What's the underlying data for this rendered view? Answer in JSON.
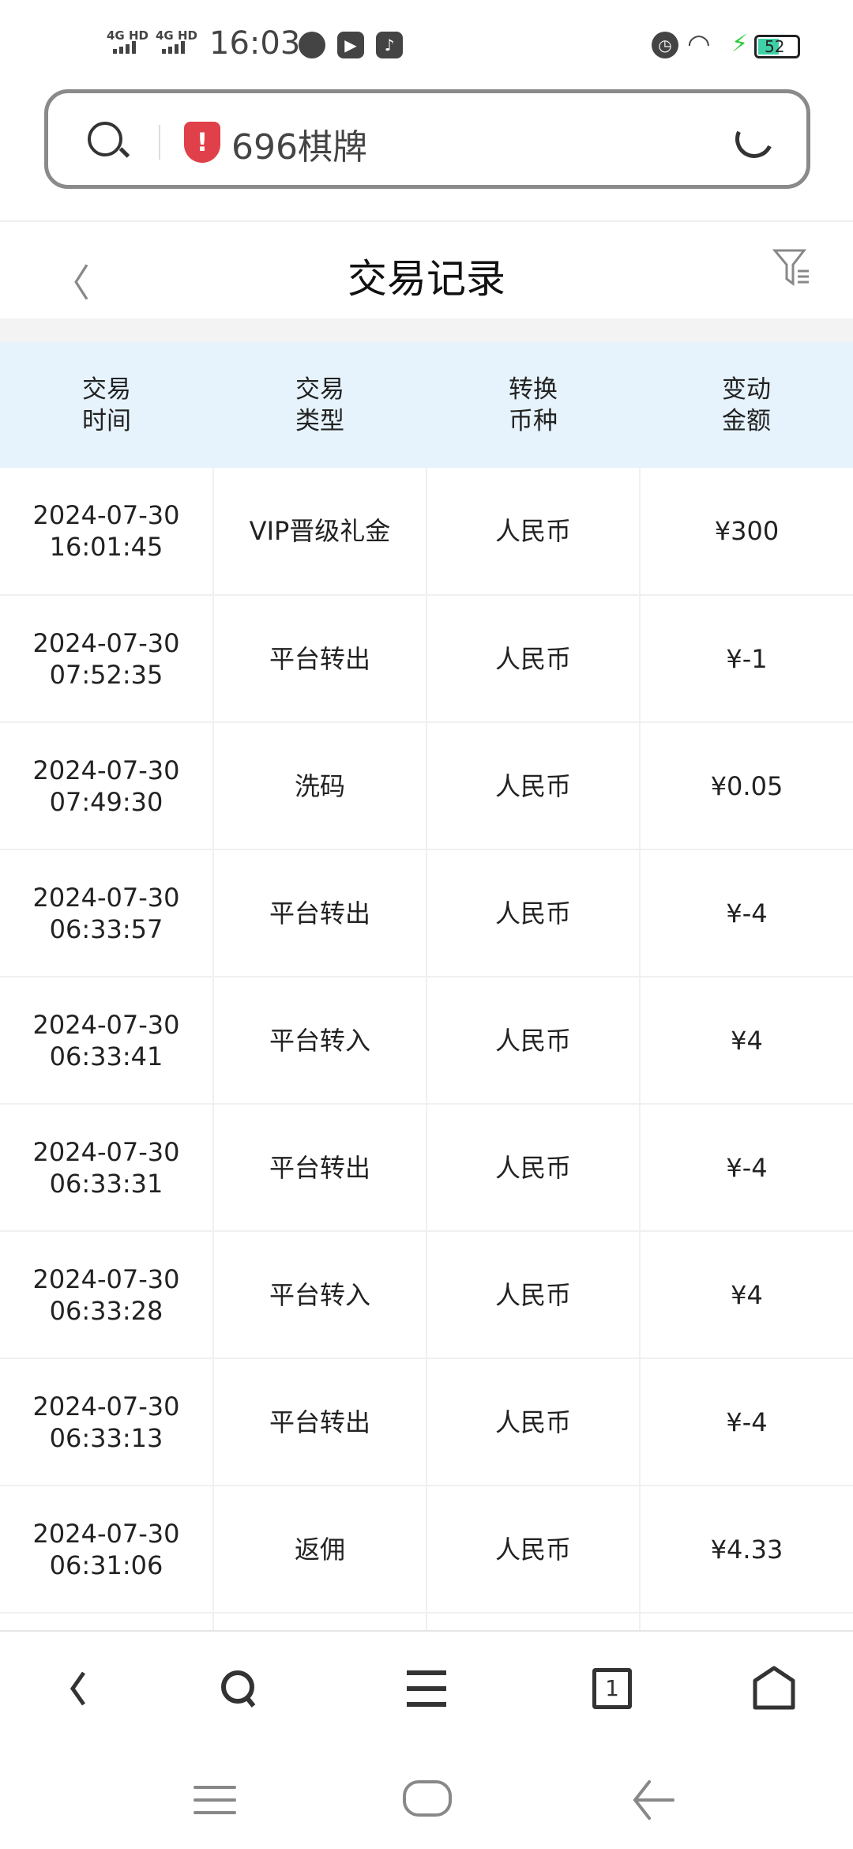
{
  "status_bar": {
    "network1": "4G HD",
    "network2": "4G HD",
    "time": "16:03",
    "battery": "52",
    "battery_level_percent": 52,
    "charging": true,
    "icons": [
      "signal-icon",
      "signal-icon",
      "chat-bubble-icon",
      "play-icon",
      "music-icon",
      "alarm-icon",
      "wifi-icon",
      "charging-bolt-icon",
      "battery-icon"
    ]
  },
  "browser": {
    "site_title": "696棋牌",
    "warning_color": "#e0404a",
    "icons": [
      "search-icon",
      "security-warning-shield-icon",
      "reload-icon"
    ]
  },
  "header": {
    "title": "交易记录",
    "icons": [
      "back-chevron-icon",
      "filter-icon"
    ]
  },
  "table": {
    "header_bg": "#e6f3fc",
    "columns": [
      [
        "交易",
        "时间"
      ],
      [
        "交易",
        "类型"
      ],
      [
        "转换",
        "币种"
      ],
      [
        "变动",
        "金额"
      ]
    ],
    "rows": [
      {
        "date": "2024-07-30",
        "time": "16:01:45",
        "type": "VIP晋级礼金",
        "currency": "人民币",
        "amount": "¥300"
      },
      {
        "date": "2024-07-30",
        "time": "07:52:35",
        "type": "平台转出",
        "currency": "人民币",
        "amount": "¥-1"
      },
      {
        "date": "2024-07-30",
        "time": "07:49:30",
        "type": "洗码",
        "currency": "人民币",
        "amount": "¥0.05"
      },
      {
        "date": "2024-07-30",
        "time": "06:33:57",
        "type": "平台转出",
        "currency": "人民币",
        "amount": "¥-4"
      },
      {
        "date": "2024-07-30",
        "time": "06:33:41",
        "type": "平台转入",
        "currency": "人民币",
        "amount": "¥4"
      },
      {
        "date": "2024-07-30",
        "time": "06:33:31",
        "type": "平台转出",
        "currency": "人民币",
        "amount": "¥-4"
      },
      {
        "date": "2024-07-30",
        "time": "06:33:28",
        "type": "平台转入",
        "currency": "人民币",
        "amount": "¥4"
      },
      {
        "date": "2024-07-30",
        "time": "06:33:13",
        "type": "平台转出",
        "currency": "人民币",
        "amount": "¥-4"
      },
      {
        "date": "2024-07-30",
        "time": "06:31:06",
        "type": "返佣",
        "currency": "人民币",
        "amount": "¥4.33"
      }
    ]
  },
  "bottom_nav": {
    "tab_count": "1",
    "icons": [
      "back-icon",
      "search-icon",
      "menu-icon",
      "tabs-icon",
      "home-icon"
    ]
  },
  "system_nav": {
    "icons": [
      "recents-icon",
      "home-pill-icon",
      "back-arrow-icon"
    ]
  }
}
